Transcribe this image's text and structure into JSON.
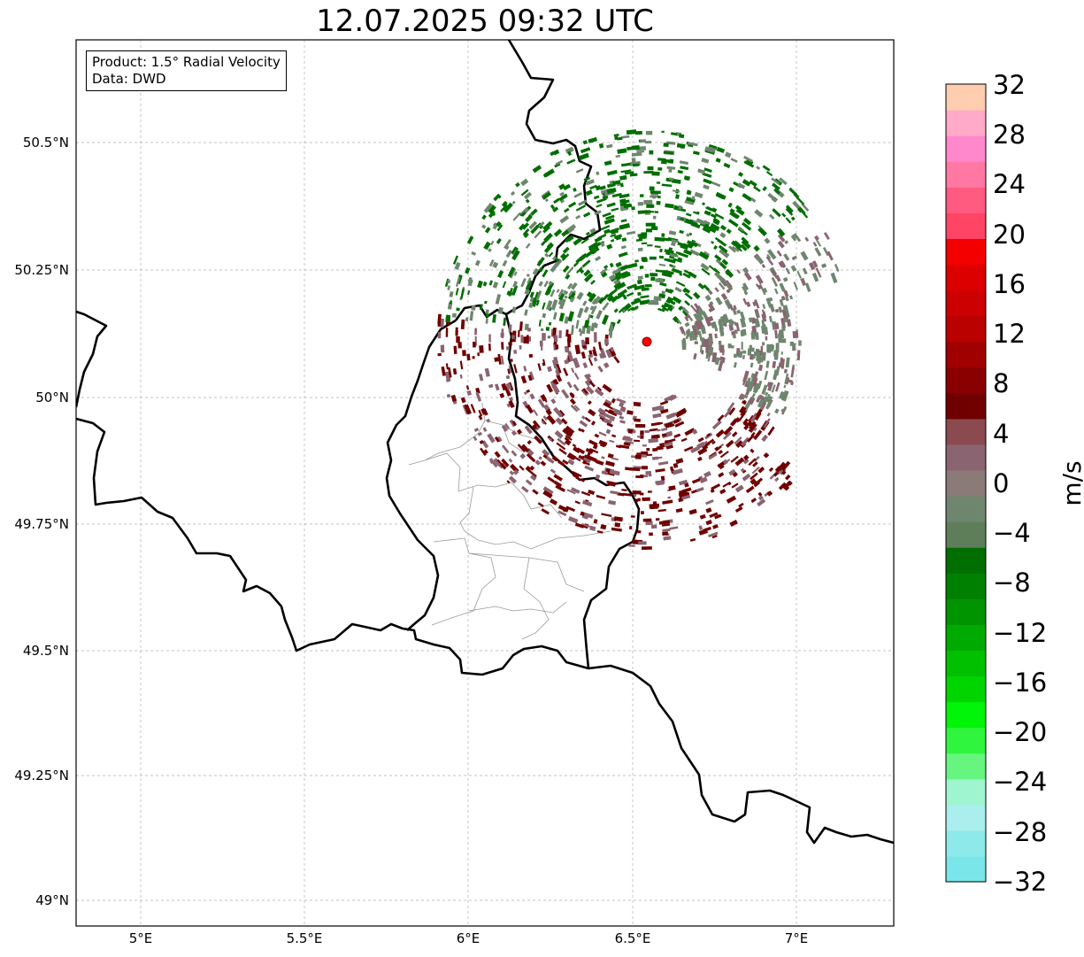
{
  "title": "12.07.2025 09:32 UTC",
  "info_box": {
    "product": "Product: 1.5° Radial Velocity",
    "source": "Data: DWD"
  },
  "axes": {
    "lat_labels": [
      "50.5°N",
      "50.25°N",
      "50°N",
      "49.75°N",
      "49.5°N",
      "49.25°N",
      "49°N"
    ],
    "lon_labels": [
      "5°E",
      "5.5°E",
      "6°E",
      "6.5°E",
      "7°E"
    ],
    "lat_values": [
      50.5,
      50.25,
      50.0,
      49.75,
      49.5,
      49.25,
      49.0
    ],
    "lon_values": [
      5.0,
      5.5,
      6.0,
      6.5,
      7.0
    ],
    "extent": {
      "lon_min": 4.8,
      "lon_max": 7.3,
      "lat_min": 48.95,
      "lat_max": 50.7
    }
  },
  "radar_site": {
    "lat": 50.11,
    "lon": 6.55,
    "marker_color": "#ff0000"
  },
  "colorbar": {
    "unit": "m/s",
    "min": -32,
    "max": 32,
    "tick_labels": [
      "32",
      "28",
      "24",
      "20",
      "16",
      "12",
      "8",
      "4",
      "0",
      "−4",
      "−8",
      "−12",
      "−16",
      "−20",
      "−24",
      "−28",
      "−32"
    ],
    "colors_bottom_to_top": [
      "#7ae6e9",
      "#8eeaea",
      "#aaeeee",
      "#9ff5d0",
      "#66f57f",
      "#2ff53e",
      "#00f508",
      "#00d500",
      "#00c000",
      "#00aa00",
      "#009400",
      "#008000",
      "#006e00",
      "#5e7e5a",
      "#6e866e",
      "#8a7a78",
      "#8a6470",
      "#8a4a50",
      "#700000",
      "#8a0000",
      "#a00000",
      "#bb0000",
      "#cc0000",
      "#dd0000",
      "#f50000",
      "#ff4466",
      "#ff5a80",
      "#ff78a4",
      "#ff88cc",
      "#ffaac8",
      "#ffcdb0"
    ]
  },
  "colors": {
    "border": "#000000",
    "grid": "#b0b0b0",
    "district": "#9a9a9a",
    "approach": "#006e00",
    "approach_light": "#6e866e",
    "recede": "#700000",
    "recede_light": "#8a6470"
  }
}
